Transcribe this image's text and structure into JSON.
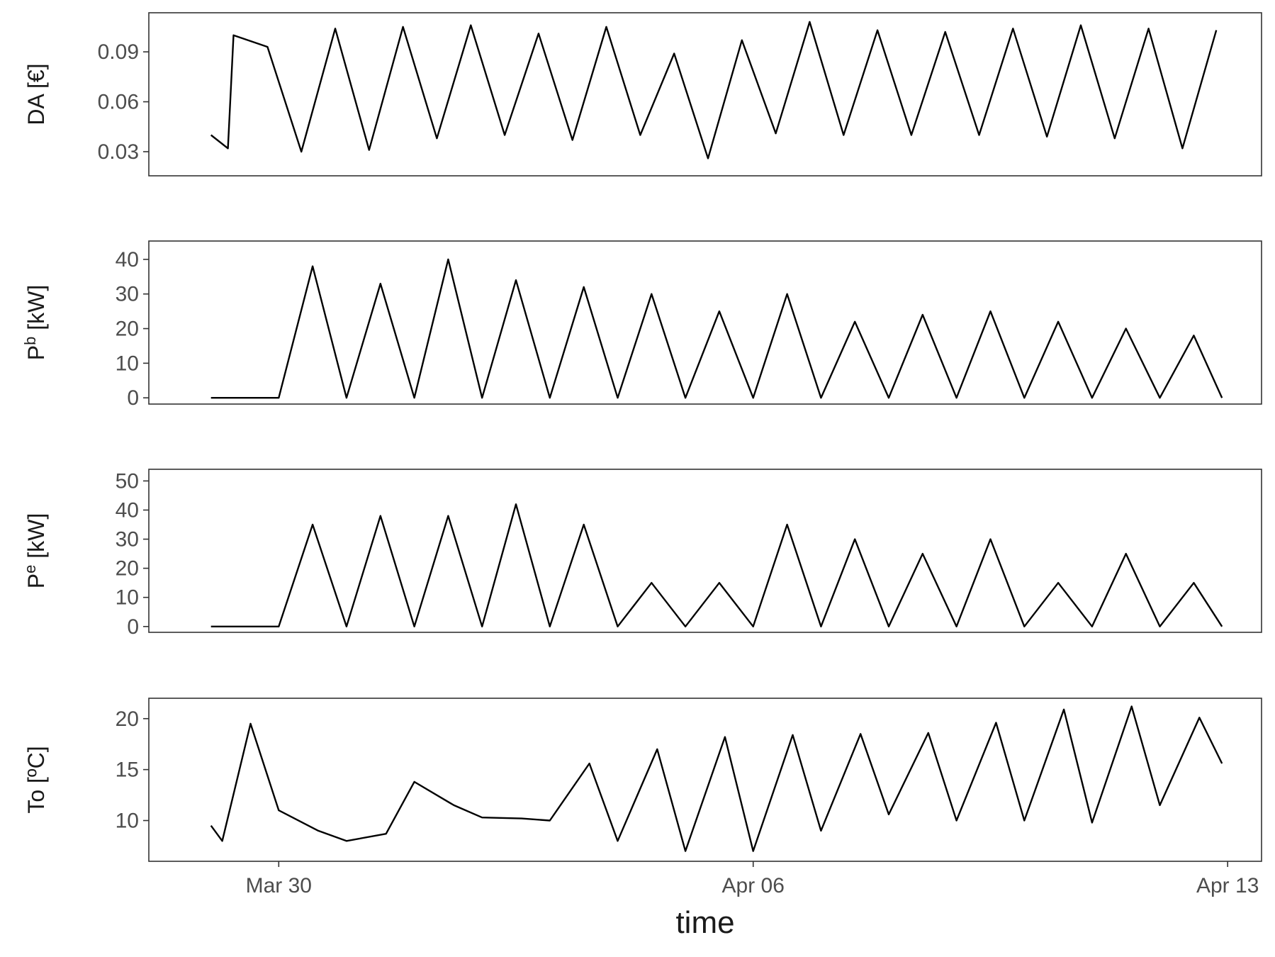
{
  "chart_data": [
    {
      "type": "line",
      "ylabel": "DA [€]",
      "ylabel_parts": {
        "base": "DA [€]",
        "sup": "",
        "rest": ""
      },
      "yticks": [
        0.03,
        0.06,
        0.09
      ],
      "ytick_labels": [
        "0.03",
        "0.06",
        "0.09"
      ],
      "ylim": [
        0.0155,
        0.1135
      ],
      "series": [
        {
          "x": [
            "2024-03-29 00:00",
            "2024-03-29 06:00",
            "2024-03-29 08:00",
            "2024-03-29 20:00",
            "2024-03-30 08:00",
            "2024-03-30 20:00",
            "2024-03-31 08:00",
            "2024-03-31 20:00",
            "2024-04-01 08:00",
            "2024-04-01 20:00",
            "2024-04-02 08:00",
            "2024-04-02 20:00",
            "2024-04-03 08:00",
            "2024-04-03 20:00",
            "2024-04-04 08:00",
            "2024-04-04 20:00",
            "2024-04-05 08:00",
            "2024-04-05 20:00",
            "2024-04-06 08:00",
            "2024-04-06 20:00",
            "2024-04-07 08:00",
            "2024-04-07 20:00",
            "2024-04-08 08:00",
            "2024-04-08 20:00",
            "2024-04-09 08:00",
            "2024-04-09 20:00",
            "2024-04-10 08:00",
            "2024-04-10 20:00",
            "2024-04-11 08:00",
            "2024-04-11 20:00",
            "2024-04-12 08:00",
            "2024-04-12 20:00"
          ],
          "y": [
            0.04,
            0.032,
            0.1,
            0.093,
            0.03,
            0.104,
            0.031,
            0.105,
            0.038,
            0.106,
            0.04,
            0.101,
            0.037,
            0.105,
            0.04,
            0.089,
            0.026,
            0.097,
            0.041,
            0.108,
            0.04,
            0.103,
            0.04,
            0.102,
            0.04,
            0.104,
            0.039,
            0.106,
            0.038,
            0.104,
            0.032,
            0.103
          ]
        }
      ]
    },
    {
      "type": "line",
      "ylabel": "P^b [kW]",
      "ylabel_parts": {
        "base": "P",
        "sup": "b",
        "rest": " [kW]"
      },
      "yticks": [
        0,
        10,
        20,
        30,
        40
      ],
      "ytick_labels": [
        "0",
        "10",
        "20",
        "30",
        "40"
      ],
      "ylim": [
        -1.8,
        45.3
      ],
      "series": [
        {
          "x": [
            "2024-03-29 00:00",
            "2024-03-29 04:00",
            "2024-03-29 12:00",
            "2024-03-30 00:00",
            "2024-03-30 12:00",
            "2024-03-31 00:00",
            "2024-03-31 12:00",
            "2024-04-01 00:00",
            "2024-04-01 12:00",
            "2024-04-02 00:00",
            "2024-04-02 12:00",
            "2024-04-03 00:00",
            "2024-04-03 12:00",
            "2024-04-04 00:00",
            "2024-04-04 12:00",
            "2024-04-05 00:00",
            "2024-04-05 12:00",
            "2024-04-06 00:00",
            "2024-04-06 12:00",
            "2024-04-07 00:00",
            "2024-04-07 12:00",
            "2024-04-08 00:00",
            "2024-04-08 12:00",
            "2024-04-09 00:00",
            "2024-04-09 12:00",
            "2024-04-10 00:00",
            "2024-04-10 12:00",
            "2024-04-11 00:00",
            "2024-04-11 12:00",
            "2024-04-12 00:00",
            "2024-04-12 12:00",
            "2024-04-12 22:00"
          ],
          "y": [
            0,
            0,
            0,
            0,
            38,
            0,
            33,
            0,
            40,
            0,
            34,
            0,
            32,
            0,
            30,
            0,
            25,
            0,
            30,
            0,
            22,
            0,
            24,
            0,
            25,
            0,
            22,
            0,
            20,
            0,
            18,
            0
          ]
        }
      ]
    },
    {
      "type": "line",
      "ylabel": "P^e [kW]",
      "ylabel_parts": {
        "base": "P",
        "sup": "e",
        "rest": " [kW]"
      },
      "yticks": [
        0,
        10,
        20,
        30,
        40,
        50
      ],
      "ytick_labels": [
        "0",
        "10",
        "20",
        "30",
        "40",
        "50"
      ],
      "ylim": [
        -2,
        54
      ],
      "series": [
        {
          "x": [
            "2024-03-29 00:00",
            "2024-03-29 04:00",
            "2024-03-29 12:00",
            "2024-03-30 00:00",
            "2024-03-30 12:00",
            "2024-03-31 00:00",
            "2024-03-31 12:00",
            "2024-04-01 00:00",
            "2024-04-01 12:00",
            "2024-04-02 00:00",
            "2024-04-02 12:00",
            "2024-04-03 00:00",
            "2024-04-03 12:00",
            "2024-04-04 00:00",
            "2024-04-04 12:00",
            "2024-04-05 00:00",
            "2024-04-05 12:00",
            "2024-04-06 00:00",
            "2024-04-06 12:00",
            "2024-04-07 00:00",
            "2024-04-07 12:00",
            "2024-04-08 00:00",
            "2024-04-08 12:00",
            "2024-04-09 00:00",
            "2024-04-09 12:00",
            "2024-04-10 00:00",
            "2024-04-10 12:00",
            "2024-04-11 00:00",
            "2024-04-11 12:00",
            "2024-04-12 00:00",
            "2024-04-12 12:00",
            "2024-04-12 22:00"
          ],
          "y": [
            0,
            0,
            0,
            0,
            35,
            0,
            38,
            0,
            38,
            0,
            42,
            0,
            35,
            0,
            15,
            0,
            15,
            0,
            35,
            0,
            30,
            0,
            25,
            0,
            30,
            0,
            15,
            0,
            25,
            0,
            15,
            0
          ]
        }
      ]
    },
    {
      "type": "line",
      "ylabel": "To [ºC]",
      "ylabel_parts": {
        "base": "To [ºC]",
        "sup": "",
        "rest": ""
      },
      "yticks": [
        10,
        15,
        20
      ],
      "ytick_labels": [
        "10",
        "15",
        "20"
      ],
      "ylim": [
        6,
        22
      ],
      "series": [
        {
          "x": [
            "2024-03-29 00:00",
            "2024-03-29 04:00",
            "2024-03-29 14:00",
            "2024-03-30 00:00",
            "2024-03-30 14:00",
            "2024-03-31 00:00",
            "2024-03-31 14:00",
            "2024-04-01 00:00",
            "2024-04-01 14:00",
            "2024-04-02 00:00",
            "2024-04-02 14:00",
            "2024-04-03 00:00",
            "2024-04-03 14:00",
            "2024-04-04 00:00",
            "2024-04-04 14:00",
            "2024-04-05 00:00",
            "2024-04-05 14:00",
            "2024-04-06 00:00",
            "2024-04-06 14:00",
            "2024-04-07 00:00",
            "2024-04-07 14:00",
            "2024-04-08 00:00",
            "2024-04-08 14:00",
            "2024-04-09 00:00",
            "2024-04-09 14:00",
            "2024-04-10 00:00",
            "2024-04-10 14:00",
            "2024-04-11 00:00",
            "2024-04-11 14:00",
            "2024-04-12 00:00",
            "2024-04-12 14:00",
            "2024-04-12 22:00"
          ],
          "y": [
            9.5,
            8,
            19.5,
            11,
            9,
            8,
            8.7,
            13.8,
            11.5,
            10.3,
            10.2,
            10,
            15.6,
            8,
            17,
            7,
            18.2,
            7,
            18.4,
            9,
            18.5,
            10.6,
            18.6,
            10,
            19.6,
            10,
            20.9,
            9.8,
            21.2,
            11.5,
            20.1,
            15.6
          ]
        }
      ]
    }
  ],
  "x_axis": {
    "title": "time",
    "ticks": [
      "2024-03-30",
      "2024-04-06",
      "2024-04-13"
    ],
    "tick_labels": [
      "Mar 30",
      "Apr 06",
      "Apr 13"
    ],
    "xlim": [
      "2024-03-28 02:00",
      "2024-04-13 12:00"
    ]
  }
}
